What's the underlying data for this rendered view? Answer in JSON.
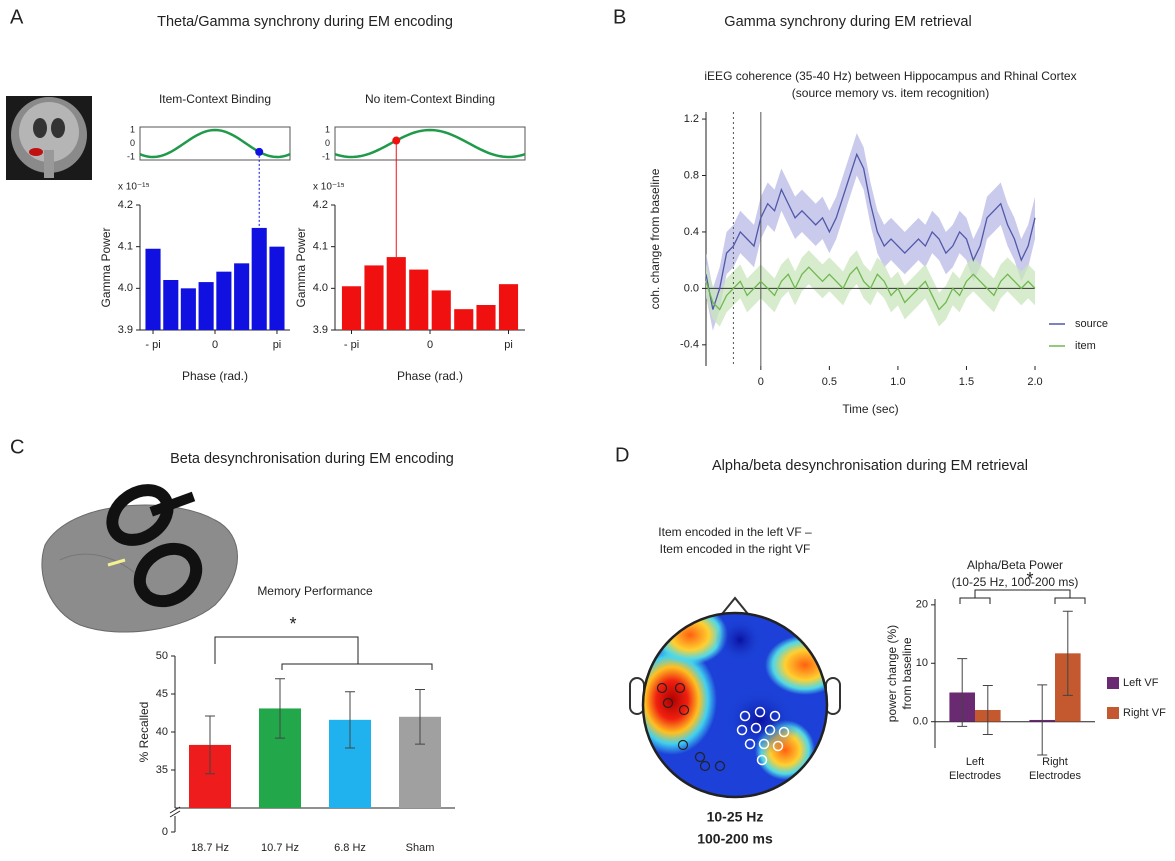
{
  "panels": [
    {
      "letter": "A",
      "title": "Theta/Gamma synchrony during EM encoding"
    },
    {
      "letter": "B",
      "title": "Gamma synchrony during EM retrieval"
    },
    {
      "letter": "C",
      "title": "Beta desynchronisation during EM encoding"
    },
    {
      "letter": "D",
      "title": "Alpha/beta desynchronisation during EM retrieval"
    }
  ],
  "topomap": {
    "title": [
      "Item encoded in the left VF –",
      "Item encoded in the right VF"
    ],
    "band": "10-25 Hz",
    "window": "100-200 ms"
  },
  "chart_data": [
    {
      "type": "bar",
      "title": "Item-Context Binding",
      "multiplier": "x 10⁻¹⁵",
      "ylabel": "Gamma Power",
      "xlabel": "Phase (rad.)",
      "x": [
        -3.14,
        -2.24,
        -1.35,
        -0.45,
        0.45,
        1.35,
        2.24,
        3.14
      ],
      "values": [
        4.095,
        4.02,
        4.0,
        4.015,
        4.04,
        4.06,
        4.145,
        4.1
      ],
      "color": "#1010e0",
      "xlim": [
        -3.8,
        3.8
      ],
      "xticks": [
        {
          "value": -3.14,
          "label": "- pi"
        },
        0,
        {
          "value": 3.14,
          "label": "pi"
        }
      ],
      "ylim": [
        3.9,
        4.2
      ],
      "yticks": [
        3.9,
        {
          "value": 4,
          "label": "4.0"
        },
        4.1,
        4.2
      ],
      "inset": {
        "yticks": [
          1,
          0,
          -1
        ],
        "color": "#1f9a4a"
      },
      "highlight": 6
    },
    {
      "type": "bar",
      "title": "No item-Context Binding",
      "multiplier": "x 10⁻¹⁵",
      "ylabel": "Gamma Power",
      "xlabel": "Phase (rad.)",
      "x": [
        -3.14,
        -2.24,
        -1.35,
        -0.45,
        0.45,
        1.35,
        2.24,
        3.14
      ],
      "values": [
        4.005,
        4.055,
        4.075,
        4.045,
        3.995,
        3.95,
        3.96,
        4.01
      ],
      "color": "#f01010",
      "xlim": [
        -3.8,
        3.8
      ],
      "xticks": [
        {
          "value": -3.14,
          "label": "- pi"
        },
        0,
        {
          "value": 3.14,
          "label": "pi"
        }
      ],
      "ylim": [
        3.9,
        4.2
      ],
      "yticks": [
        3.9,
        {
          "value": 4,
          "label": "4.0"
        },
        4.1,
        4.2
      ],
      "inset": {
        "yticks": [
          1,
          0,
          -1
        ],
        "color": "#1f9a4a"
      },
      "highlight": 2
    },
    {
      "type": "line",
      "title": "iEEG coherence (35-40 Hz) between  Hippocampus and Rhinal Cortex",
      "subtitle": "(source memory vs. item recognition)",
      "ylabel": "coh. change from baseline",
      "xlabel": "Time (sec)",
      "x": [
        -0.4,
        -0.35,
        -0.3,
        -0.25,
        -0.2,
        -0.15,
        -0.1,
        -0.05,
        0,
        0.05,
        0.1,
        0.15,
        0.2,
        0.25,
        0.3,
        0.35,
        0.4,
        0.45,
        0.5,
        0.55,
        0.6,
        0.65,
        0.7,
        0.75,
        0.8,
        0.85,
        0.9,
        0.95,
        1.0,
        1.05,
        1.1,
        1.15,
        1.2,
        1.25,
        1.3,
        1.35,
        1.4,
        1.45,
        1.5,
        1.55,
        1.6,
        1.65,
        1.7,
        1.75,
        1.8,
        1.85,
        1.9,
        1.95,
        2.0
      ],
      "series": [
        {
          "name": "source",
          "color": "#5058a8",
          "band": 0.15,
          "band_color": "#b8b8e6",
          "values": [
            0.1,
            -0.15,
            0,
            0.25,
            0.3,
            0.4,
            0.35,
            0.3,
            0.5,
            0.6,
            0.55,
            0.7,
            0.6,
            0.5,
            0.55,
            0.5,
            0.45,
            0.5,
            0.4,
            0.5,
            0.65,
            0.8,
            0.95,
            0.85,
            0.6,
            0.4,
            0.3,
            0.35,
            0.3,
            0.25,
            0.3,
            0.35,
            0.3,
            0.4,
            0.35,
            0.25,
            0.3,
            0.4,
            0.35,
            0.2,
            0.3,
            0.5,
            0.55,
            0.6,
            0.45,
            0.35,
            0.2,
            0.3,
            0.5
          ]
        },
        {
          "name": "item",
          "color": "#6fb850",
          "band": 0.12,
          "band_color": "#c9e6bb",
          "values": [
            0.05,
            -0.1,
            -0.15,
            -0.05,
            0,
            0.05,
            -0.05,
            0,
            0.05,
            0,
            -0.05,
            0.05,
            0.1,
            0,
            0.1,
            0.15,
            0.1,
            0.05,
            0.1,
            0.05,
            0,
            0.1,
            0.15,
            0.05,
            0,
            0.1,
            0.05,
            -0.05,
            0,
            -0.1,
            -0.05,
            0,
            0.05,
            -0.05,
            -0.15,
            -0.1,
            0,
            -0.05,
            0.05,
            0.1,
            0.05,
            0,
            -0.05,
            0.05,
            0.1,
            0.05,
            0,
            0.05,
            0
          ]
        }
      ],
      "xlim": [
        -0.4,
        2.0
      ],
      "xticks": [
        0,
        0.5,
        {
          "value": 1,
          "label": "1.0"
        },
        1.5,
        {
          "value": 2,
          "label": "2.0"
        }
      ],
      "ylim": [
        -0.55,
        1.25
      ],
      "yticks": [
        1.2,
        0.8,
        0.4,
        {
          "value": 0,
          "label": "0.0"
        },
        -0.4
      ],
      "vlines": [
        {
          "x": -0.2,
          "style": "dotted"
        },
        {
          "x": 0,
          "style": "solid"
        }
      ],
      "legend": "lower right"
    },
    {
      "type": "bar",
      "title": "Memory Performance",
      "ylabel": "% Recalled",
      "annotation": "*",
      "categories": [
        [
          "18.7 Hz"
        ],
        [
          "10.7 Hz"
        ],
        [
          "6.8 Hz"
        ],
        [
          "Sham"
        ]
      ],
      "values": [
        38.3,
        43.1,
        41.6,
        42.0
      ],
      "errors": [
        3.8,
        3.9,
        3.7,
        3.6
      ],
      "colors": [
        "#ee1c1c",
        "#22a84a",
        "#1fb2ee",
        "#a0a0a0"
      ],
      "ylim": [
        30,
        50
      ],
      "yticks": [
        35,
        40,
        45,
        50
      ],
      "ybreak_tick": 0
    },
    {
      "type": "bar",
      "title": "Alpha/Beta Power",
      "subtitle": "(10-25 Hz, 100-200 ms)",
      "ylabel": [
        "power change (%)",
        "from baseline"
      ],
      "annotation": "*",
      "categories": [
        [
          "Left",
          "Electrodes"
        ],
        [
          "Right",
          "Electrodes"
        ]
      ],
      "series": [
        {
          "name": "Left VF",
          "color": "#6a2a72",
          "values": [
            5.0,
            0.3
          ],
          "errors": [
            5.8,
            6.0
          ]
        },
        {
          "name": "Right VF",
          "color": "#c4582e",
          "values": [
            2.0,
            11.7
          ],
          "errors": [
            4.2,
            7.2
          ]
        }
      ],
      "ylim": [
        -4.5,
        21
      ],
      "yticks": [
        {
          "value": 0,
          "label": "0.0"
        },
        10,
        20
      ],
      "legend": "right"
    }
  ]
}
